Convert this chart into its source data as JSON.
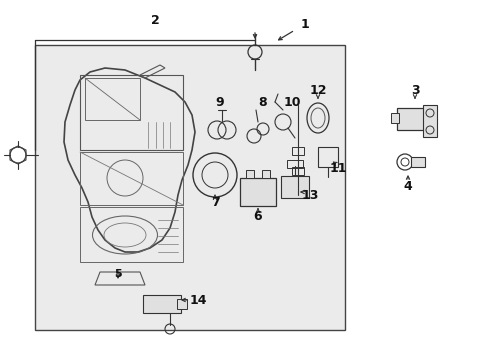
{
  "bg_color": "#ffffff",
  "box_bg": "#e8e8e8",
  "line_color": "#333333",
  "font_size": 9
}
